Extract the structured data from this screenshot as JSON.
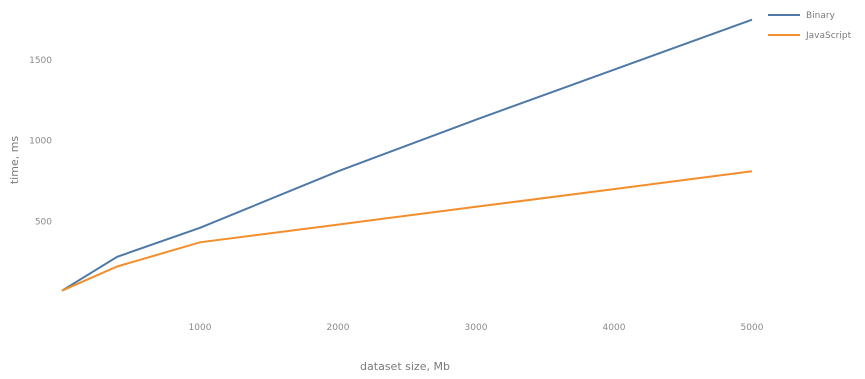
{
  "chart_data": {
    "type": "line",
    "xlabel": "dataset size, Mb",
    "ylabel": "time, ms",
    "x": [
      0,
      400,
      1000,
      2000,
      3000,
      4000,
      5000
    ],
    "xticks": [
      1000,
      2000,
      3000,
      4000,
      5000
    ],
    "yticks": [
      500,
      1000,
      1500
    ],
    "xlim": [
      0,
      5100
    ],
    "ylim": [
      0,
      1700
    ],
    "series": [
      {
        "name": "Binary",
        "color": "#4e79a7",
        "values": [
          70,
          280,
          460,
          810,
          1130,
          1440,
          1750
        ]
      },
      {
        "name": "JavaScript",
        "color": "#f28e2b",
        "values": [
          70,
          220,
          370,
          480,
          590,
          700,
          810
        ]
      }
    ],
    "legend_position": "top-right",
    "grid": false
  }
}
